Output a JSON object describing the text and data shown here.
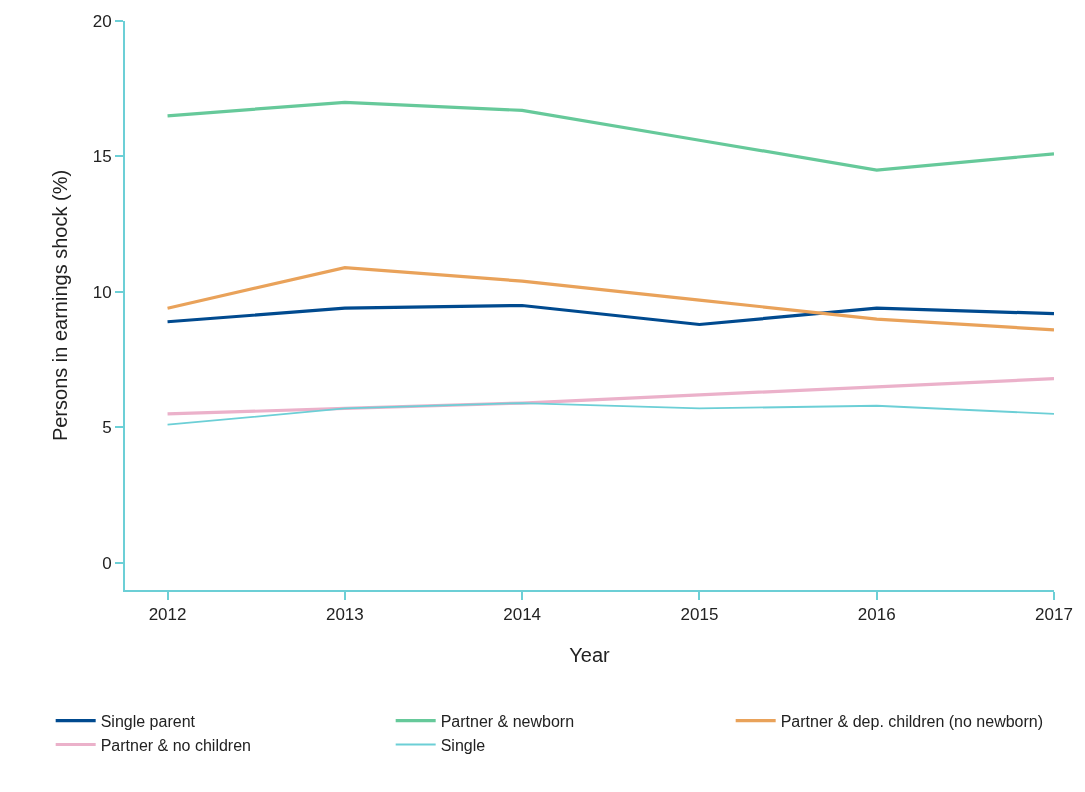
{
  "chart_data": {
    "type": "line",
    "xlabel": "Year",
    "ylabel": "Persons in earnings shock (%)",
    "x": [
      2012,
      2013,
      2014,
      2015,
      2016,
      2017
    ],
    "series": [
      {
        "name": "Single parent",
        "color": "#004a8f",
        "values": [
          8.9,
          9.4,
          9.5,
          8.8,
          9.4,
          9.2
        ]
      },
      {
        "name": "Partner & newborn",
        "color": "#66c99a",
        "values": [
          16.5,
          17.0,
          16.7,
          15.6,
          14.5,
          15.1
        ]
      },
      {
        "name": "Partner & dep. children (no newborn)",
        "color": "#e9a25a",
        "values": [
          9.4,
          10.9,
          10.4,
          9.7,
          9.0,
          8.6
        ]
      },
      {
        "name": "Partner & no children",
        "color": "#ebb1ca",
        "values": [
          5.5,
          5.7,
          5.9,
          6.2,
          6.5,
          6.8
        ]
      },
      {
        "name": "Single",
        "color": "#6ccfd6",
        "values": [
          5.1,
          5.7,
          5.9,
          5.7,
          5.8,
          5.5
        ]
      }
    ],
    "xlim": [
      2011.76,
      2017
    ],
    "xticks": [
      2012,
      2013,
      2014,
      2015,
      2016,
      2017
    ],
    "ylim": [
      -1,
      20
    ],
    "yticks": [
      0,
      5,
      10,
      15,
      20
    ],
    "legend": "bottom",
    "marker": "none",
    "line_style": "solid"
  }
}
